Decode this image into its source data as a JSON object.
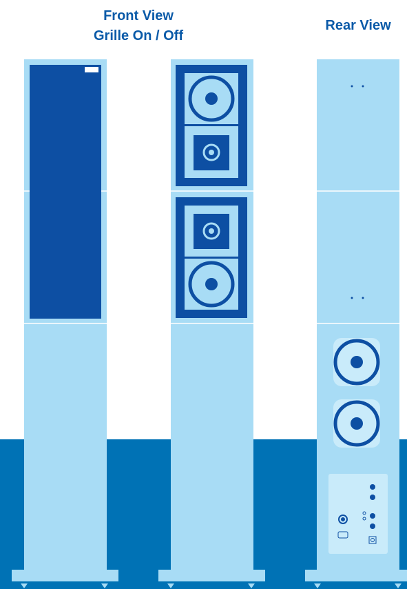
{
  "labels": {
    "front": "Front View",
    "front_sub": "Grille On / Off",
    "rear": "Rear View"
  }
}
